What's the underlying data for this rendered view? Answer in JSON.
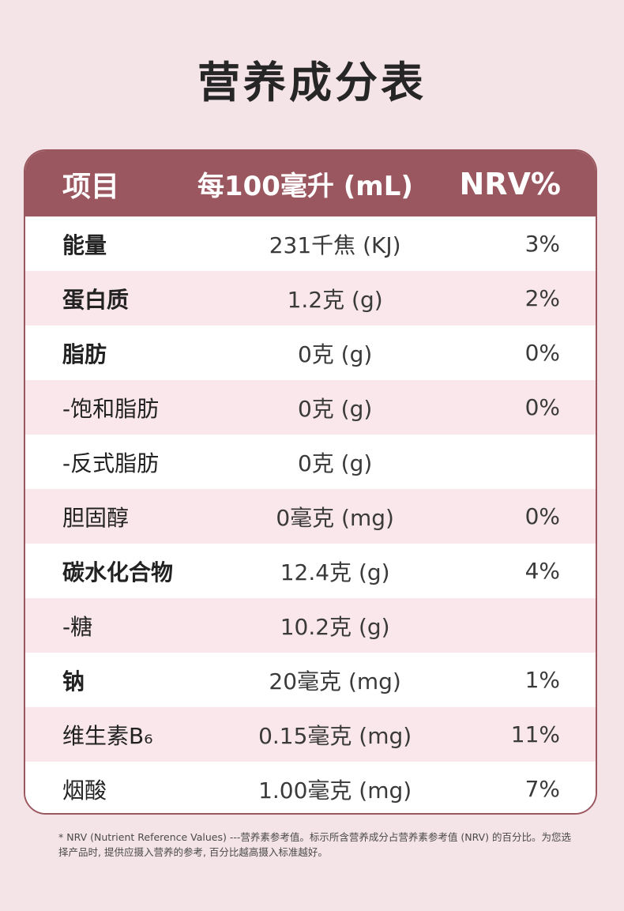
{
  "title": "营养成分表",
  "header": {
    "item": "项目",
    "amount": "每100毫升 (mL)",
    "nrv": "NRV%"
  },
  "rows": [
    {
      "name": "能量",
      "amount": "231千焦 (KJ)",
      "nrv": "3%",
      "bold": true
    },
    {
      "name": "蛋白质",
      "amount": "1.2克 (g)",
      "nrv": "2%",
      "bold": true
    },
    {
      "name": "脂肪",
      "amount": "0克 (g)",
      "nrv": "0%",
      "bold": true
    },
    {
      "name": "-饱和脂肪",
      "amount": "0克 (g)",
      "nrv": "0%",
      "bold": false
    },
    {
      "name": "-反式脂肪",
      "amount": "0克 (g)",
      "nrv": "",
      "bold": false
    },
    {
      "name": "胆固醇",
      "amount": "0毫克 (mg)",
      "nrv": "0%",
      "bold": false
    },
    {
      "name": "碳水化合物",
      "amount": "12.4克 (g)",
      "nrv": "4%",
      "bold": true
    },
    {
      "name": "-糖",
      "amount": "10.2克 (g)",
      "nrv": "",
      "bold": false
    },
    {
      "name": "钠",
      "amount": "20毫克 (mg)",
      "nrv": "1%",
      "bold": true
    },
    {
      "name": "维生素B₆",
      "amount": "0.15毫克 (mg)",
      "nrv": "11%",
      "bold": false
    },
    {
      "name": "烟酸",
      "amount": "1.00毫克 (mg)",
      "nrv": "7%",
      "bold": false
    }
  ],
  "footnote": "* NRV (Nutrient Reference Values) ---营养素参考值。标示所含营养成分占营养素参考值 (NRV) 的百分比。为您选择产品时, 提供应摄入营养的参考, 百分比越高摄入标准越好。",
  "colors": {
    "background": "#f4e3e7",
    "header": "#9b575f",
    "row_alt": "#f9e7eb"
  }
}
